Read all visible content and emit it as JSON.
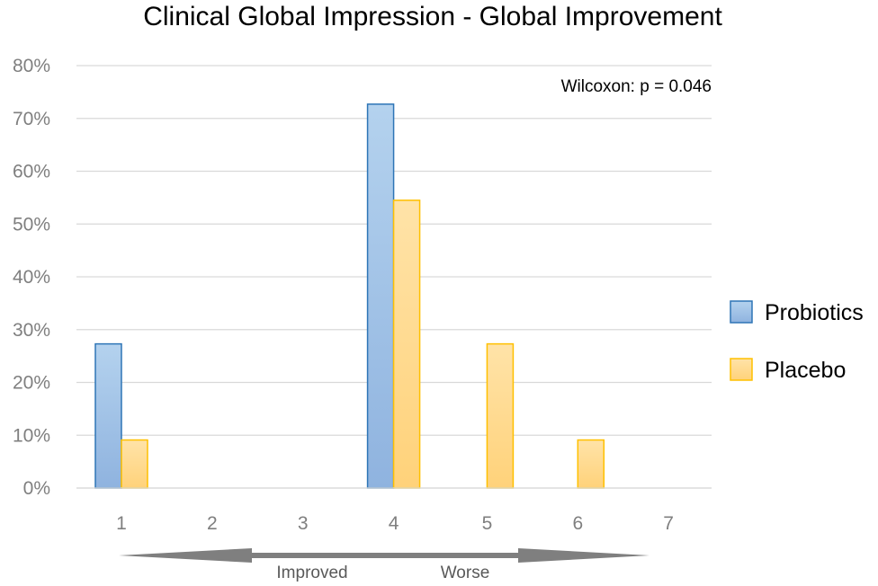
{
  "chart_data": {
    "type": "bar",
    "title": "Clinical Global Impression - Global Improvement",
    "categories": [
      "1",
      "2",
      "3",
      "4",
      "5",
      "6",
      "7"
    ],
    "series": [
      {
        "name": "Probiotics",
        "values": [
          27.3,
          0,
          0,
          72.7,
          0,
          0,
          0
        ],
        "color": "#9dc3e6",
        "edge": "#2e75b6"
      },
      {
        "name": "Placebo",
        "values": [
          9.1,
          0,
          0,
          54.5,
          27.3,
          9.1,
          0
        ],
        "color": "#ffd98a",
        "edge": "#ffc000"
      }
    ],
    "ylim": [
      0,
      80
    ],
    "yticks": [
      "0%",
      "10%",
      "20%",
      "30%",
      "40%",
      "50%",
      "60%",
      "70%",
      "80%"
    ],
    "grid": true,
    "legend": "right",
    "annotation": "Wilcoxon: p = 0.046",
    "arrow_labels": {
      "left": "Improved",
      "right": "Worse"
    }
  }
}
